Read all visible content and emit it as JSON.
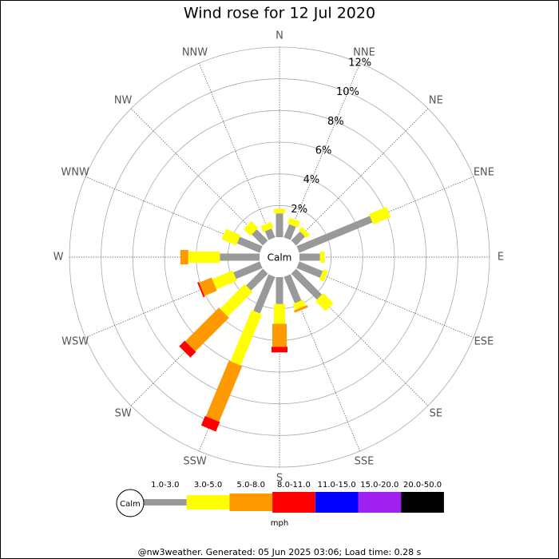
{
  "chart_data": {
    "type": "windrose",
    "title": "Wind rose for 12 Jul 2020",
    "calm_label": "Calm",
    "unit_label": "mph",
    "footer": "@nw3weather. Generated: 05 Jun 2025 03:06; Load time: 0.28 s",
    "categories": [
      "N",
      "NNE",
      "NE",
      "ENE",
      "E",
      "ESE",
      "SE",
      "SSE",
      "S",
      "SSW",
      "SW",
      "WSW",
      "W",
      "WNW",
      "NW",
      "NNW"
    ],
    "rlim": [
      0,
      12
    ],
    "rticks": [
      {
        "value": 2,
        "label": "2%"
      },
      {
        "value": 4,
        "label": "4%"
      },
      {
        "value": 6,
        "label": "6%"
      },
      {
        "value": 8,
        "label": "8%"
      },
      {
        "value": 10,
        "label": "10%"
      },
      {
        "value": 12,
        "label": "12%"
      }
    ],
    "series": [
      {
        "name": "1.0-3.0",
        "color": "#999999",
        "values": [
          1.5,
          0.9,
          0.8,
          5.0,
          1.3,
          1.6,
          2.3,
          1.8,
          1.7,
          2.5,
          1.5,
          1.8,
          2.5,
          1.55,
          1.0,
          0.6
        ]
      },
      {
        "name": "3.0-5.0",
        "color": "#ffff00",
        "values": [
          0.3,
          0.4,
          0.3,
          1.2,
          0.3,
          0.3,
          0.9,
          0.4,
          1.25,
          3.5,
          2.2,
          1.4,
          2.0,
          1.0,
          0.6,
          0.4
        ]
      },
      {
        "name": "5.0-8.0",
        "color": "#ff9900",
        "values": [
          0,
          0,
          0,
          0,
          0,
          0,
          0,
          0.15,
          1.45,
          3.8,
          3.0,
          0.85,
          0.5,
          0,
          0,
          0
        ]
      },
      {
        "name": "8.0-11.0",
        "color": "#ff0000",
        "values": [
          0,
          0,
          0,
          0,
          0,
          0,
          0,
          0,
          0.35,
          0.65,
          0.5,
          0.1,
          0,
          0,
          0,
          0
        ]
      },
      {
        "name": "11.0-15.0",
        "color": "#0000ff",
        "values": [
          0,
          0,
          0,
          0,
          0,
          0,
          0,
          0,
          0,
          0,
          0,
          0,
          0,
          0,
          0,
          0
        ]
      },
      {
        "name": "15.0-20.0",
        "color": "#a020f0",
        "values": [
          0,
          0,
          0,
          0,
          0,
          0,
          0,
          0,
          0,
          0,
          0,
          0,
          0,
          0,
          0,
          0
        ]
      },
      {
        "name": "20.0-50.0",
        "color": "#000000",
        "values": [
          0,
          0,
          0,
          0,
          0,
          0,
          0,
          0,
          0,
          0,
          0,
          0,
          0,
          0,
          0,
          0
        ]
      }
    ]
  }
}
